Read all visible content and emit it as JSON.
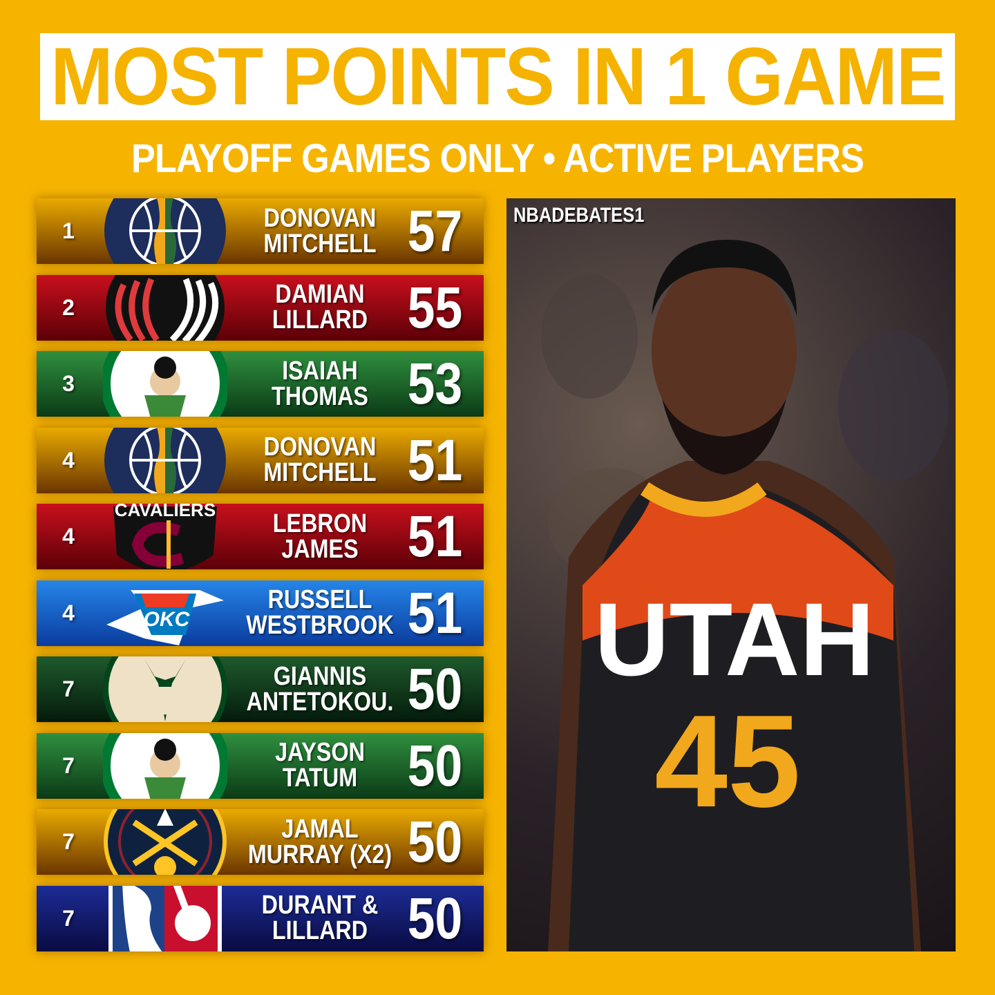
{
  "header": {
    "title": "MOST POINTS IN 1 GAME",
    "subtitle": "PLAYOFF GAMES ONLY • ACTIVE PLAYERS"
  },
  "rows": [
    {
      "rank": "1",
      "name1": "DONOVAN",
      "name2": "MITCHELL",
      "points": "57",
      "team_logo": "utah-jazz-logo",
      "bg": "gold"
    },
    {
      "rank": "2",
      "name1": "DAMIAN",
      "name2": "LILLARD",
      "points": "55",
      "team_logo": "portland-trail-blazers-logo",
      "bg": "red"
    },
    {
      "rank": "3",
      "name1": "ISAIAH",
      "name2": "THOMAS",
      "points": "53",
      "team_logo": "boston-celtics-logo",
      "bg": "green"
    },
    {
      "rank": "4",
      "name1": "DONOVAN",
      "name2": "MITCHELL",
      "points": "51",
      "team_logo": "utah-jazz-logo",
      "bg": "gold"
    },
    {
      "rank": "4",
      "name1": "LEBRON",
      "name2": "JAMES",
      "points": "51",
      "team_logo": "cleveland-cavaliers-logo",
      "bg": "red"
    },
    {
      "rank": "4",
      "name1": "RUSSELL",
      "name2": "WESTBROOK",
      "points": "51",
      "team_logo": "okc-thunder-logo",
      "bg": "blue"
    },
    {
      "rank": "7",
      "name1": "GIANNIS",
      "name2": "ANTETOKOU.",
      "points": "50",
      "team_logo": "milwaukee-bucks-logo",
      "bg": "dgreen"
    },
    {
      "rank": "7",
      "name1": "JAYSON",
      "name2": "TATUM",
      "points": "50",
      "team_logo": "boston-celtics-logo",
      "bg": "green"
    },
    {
      "rank": "7",
      "name1": "JAMAL",
      "name2": "MURRAY (X2)",
      "points": "50",
      "team_logo": "denver-nuggets-logo",
      "bg": "gold"
    },
    {
      "rank": "7",
      "name1": "DURANT &",
      "name2": "LILLARD",
      "points": "50",
      "team_logo": "nba-logo",
      "bg": "navy"
    }
  ],
  "photo": {
    "watermark": "NBADEBATES1",
    "jersey_text": "UTAH",
    "jersey_number": "45"
  },
  "colors": {
    "background": "#F6B400",
    "title_text": "#F5B300"
  }
}
